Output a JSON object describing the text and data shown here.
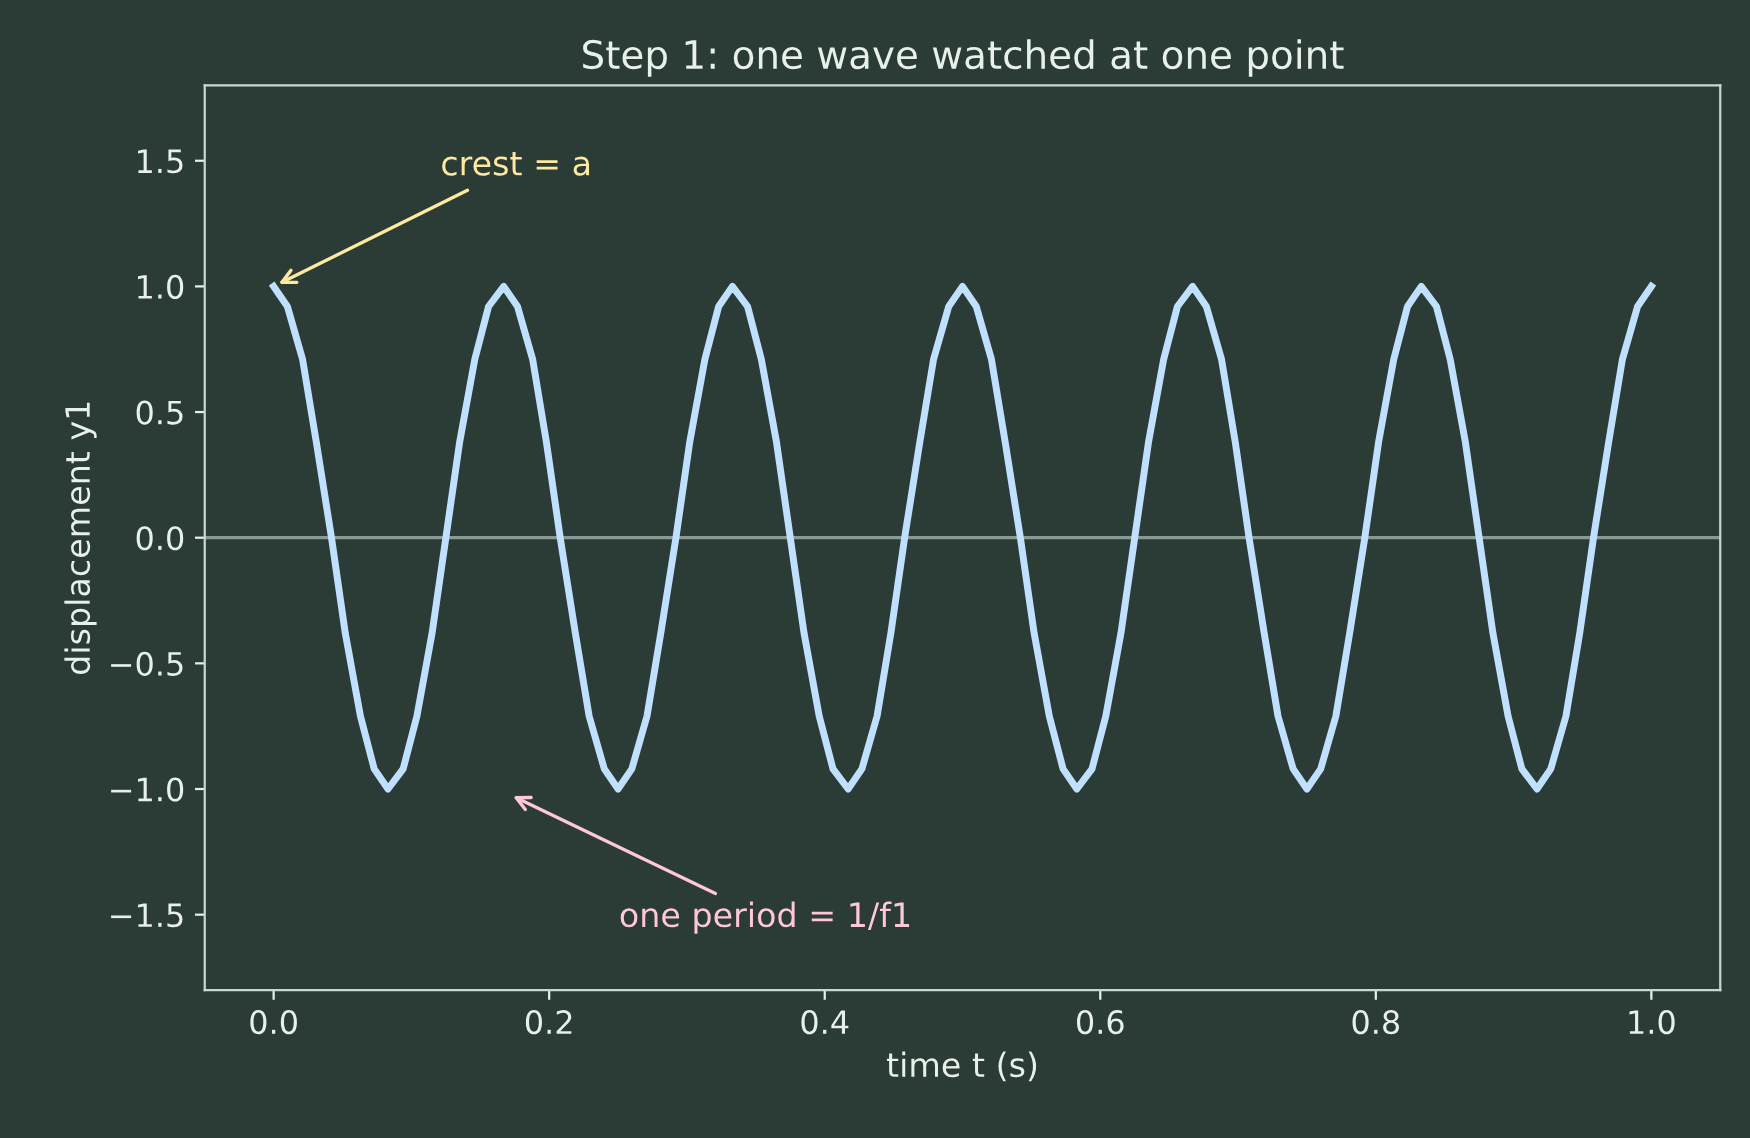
{
  "chart_data": {
    "type": "line",
    "title": "Step 1: one wave watched at one point",
    "xlabel": "time t (s)",
    "ylabel": "displacement y1",
    "x": [
      0,
      0.01,
      0.021,
      0.031,
      0.042,
      0.052,
      0.063,
      0.073,
      0.083,
      0.094,
      0.104,
      0.115,
      0.125,
      0.135,
      0.146,
      0.156,
      0.167,
      0.177,
      0.188,
      0.198,
      0.208,
      0.219,
      0.229,
      0.24,
      0.25,
      0.26,
      0.271,
      0.281,
      0.292,
      0.302,
      0.313,
      0.323,
      0.333,
      0.344,
      0.354,
      0.365,
      0.375,
      0.385,
      0.396,
      0.406,
      0.417,
      0.427,
      0.438,
      0.448,
      0.458,
      0.469,
      0.479,
      0.49,
      0.5,
      0.51,
      0.521,
      0.531,
      0.542,
      0.552,
      0.563,
      0.573,
      0.583,
      0.594,
      0.604,
      0.615,
      0.625,
      0.635,
      0.646,
      0.656,
      0.667,
      0.677,
      0.688,
      0.698,
      0.708,
      0.719,
      0.729,
      0.74,
      0.75,
      0.76,
      0.771,
      0.781,
      0.792,
      0.802,
      0.813,
      0.823,
      0.833,
      0.844,
      0.854,
      0.865,
      0.875,
      0.885,
      0.896,
      0.906,
      0.917,
      0.927,
      0.938,
      0.948,
      0.958,
      0.969,
      0.979,
      0.99,
      1.0
    ],
    "series": [
      {
        "color": "#bfe0ff",
        "values": [
          1,
          0.92,
          0.71,
          0.38,
          0,
          -0.38,
          -0.71,
          -0.92,
          -1,
          -0.92,
          -0.71,
          -0.38,
          0,
          0.38,
          0.71,
          0.92,
          1,
          0.92,
          0.71,
          0.38,
          0,
          -0.38,
          -0.71,
          -0.92,
          -1,
          -0.92,
          -0.71,
          -0.38,
          0,
          0.38,
          0.71,
          0.92,
          1,
          0.92,
          0.71,
          0.38,
          0,
          -0.38,
          -0.71,
          -0.92,
          -1,
          -0.92,
          -0.71,
          -0.38,
          0,
          0.38,
          0.71,
          0.92,
          1,
          0.92,
          0.71,
          0.38,
          0,
          -0.38,
          -0.71,
          -0.92,
          -1,
          -0.92,
          -0.71,
          -0.38,
          0,
          0.38,
          0.71,
          0.92,
          1,
          0.92,
          0.71,
          0.38,
          0,
          -0.38,
          -0.71,
          -0.92,
          -1,
          -0.92,
          -0.71,
          -0.38,
          0,
          0.38,
          0.71,
          0.92,
          1,
          0.92,
          0.71,
          0.38,
          0,
          -0.38,
          -0.71,
          -0.92,
          -1,
          -0.92,
          -0.71,
          -0.38,
          0,
          0.38,
          0.71,
          0.92,
          1
        ]
      }
    ],
    "xlim": [
      -0.05,
      1.05
    ],
    "ylim": [
      -1.8,
      1.8
    ],
    "xticks": [
      {
        "value": 0,
        "label": "0.0"
      },
      0.2,
      0.4,
      0.6,
      0.8,
      {
        "value": 1,
        "label": "1.0"
      }
    ],
    "yticks": [
      {
        "value": -1.5,
        "label": "−1.5"
      },
      {
        "value": -1,
        "label": "−1.0"
      },
      {
        "value": -0.5,
        "label": "−0.5"
      },
      {
        "value": 0,
        "label": "0.0"
      },
      0.5,
      {
        "value": 1,
        "label": "1.0"
      },
      1.5
    ],
    "ref_lines": [
      {
        "axis": "y",
        "value": 0,
        "color": "#8a9a92"
      }
    ],
    "annotations": [
      {
        "text": "crest = a",
        "x": 0,
        "y": 1
      },
      "one period = 1/f1"
    ],
    "grid": false,
    "legend": false,
    "marker": "none",
    "line_style": "solid"
  }
}
